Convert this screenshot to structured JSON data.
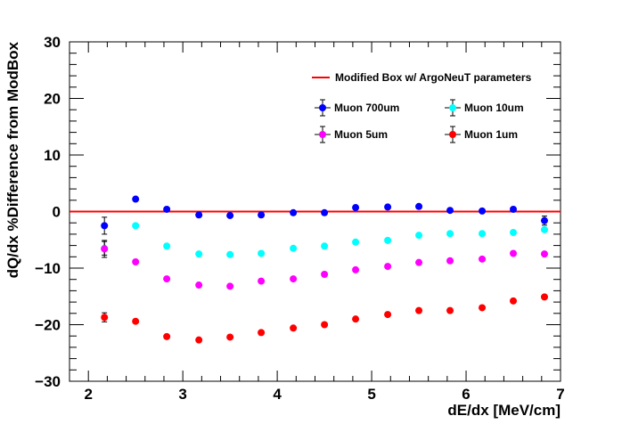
{
  "chart_data": {
    "type": "scatter",
    "xlabel": "dE/dx [MeV/cm]",
    "ylabel": "dQ/dx %Difference from ModBox",
    "xlim": [
      1.8,
      7.0
    ],
    "ylim": [
      -30,
      30
    ],
    "xticks": [
      2,
      3,
      4,
      5,
      6,
      7
    ],
    "xtick_labels": [
      "2",
      "3",
      "4",
      "5",
      "6",
      "7"
    ],
    "yticks": [
      -30,
      -20,
      -10,
      0,
      10,
      20,
      30
    ],
    "ytick_labels": [
      "−30",
      "−20",
      "−10",
      "0",
      "10",
      "20",
      "30"
    ],
    "grid": false,
    "legend_position": "top-right",
    "reference_line": {
      "name": "Modified Box w/ ArgoNeuT parameters",
      "y": 0,
      "color": "#ff0000"
    },
    "x": [
      2.17,
      2.5,
      2.83,
      3.17,
      3.5,
      3.83,
      4.17,
      4.5,
      4.83,
      5.17,
      5.5,
      5.83,
      6.17,
      6.5,
      6.83
    ],
    "series": [
      {
        "name": "Muon 700um",
        "color": "#0000ff",
        "values": [
          -2.5,
          2.2,
          0.4,
          -0.6,
          -0.7,
          -0.6,
          -0.2,
          -0.2,
          0.7,
          0.8,
          0.9,
          0.2,
          0.1,
          0.4,
          -1.6
        ],
        "errors": [
          1.5,
          0.3,
          0.3,
          0.3,
          0.3,
          0.3,
          0.3,
          0.3,
          0.3,
          0.3,
          0.3,
          0.3,
          0.3,
          0.3,
          0.8
        ]
      },
      {
        "name": "Muon 10um",
        "color": "#00ffff",
        "values": [
          -6.5,
          -2.5,
          -6.1,
          -7.5,
          -7.6,
          -7.4,
          -6.5,
          -6.1,
          -5.4,
          -5.1,
          -4.2,
          -3.9,
          -3.9,
          -3.7,
          -3.2
        ],
        "errors": [
          1.2,
          0.3,
          0.3,
          0.3,
          0.3,
          0.3,
          0.3,
          0.3,
          0.3,
          0.3,
          0.3,
          0.3,
          0.3,
          0.3,
          0.4
        ]
      },
      {
        "name": "Muon 5um",
        "color": "#ff00ff",
        "values": [
          -6.6,
          -8.9,
          -11.9,
          -13.0,
          -13.2,
          -12.3,
          -11.9,
          -11.1,
          -10.3,
          -9.7,
          -9.0,
          -8.7,
          -8.4,
          -7.4,
          -7.5
        ],
        "errors": [
          1.5,
          0.3,
          0.3,
          0.3,
          0.3,
          0.3,
          0.3,
          0.3,
          0.3,
          0.3,
          0.3,
          0.3,
          0.3,
          0.3,
          0.4
        ]
      },
      {
        "name": "Muon 1um",
        "color": "#ff0000",
        "values": [
          -18.7,
          -19.4,
          -22.1,
          -22.7,
          -22.2,
          -21.4,
          -20.6,
          -20.0,
          -19.0,
          -18.2,
          -17.5,
          -17.5,
          -17.0,
          -15.8,
          -15.1
        ],
        "errors": [
          0.8,
          0.3,
          0.3,
          0.3,
          0.3,
          0.3,
          0.3,
          0.3,
          0.3,
          0.3,
          0.3,
          0.3,
          0.3,
          0.3,
          0.3
        ]
      }
    ]
  }
}
